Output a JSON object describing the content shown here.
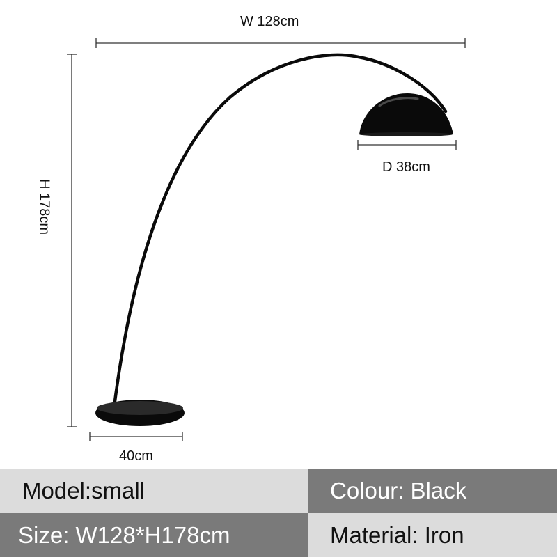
{
  "dimensions": {
    "width": "W 128cm",
    "height": "H 178cm",
    "shade_diameter": "D 38cm",
    "base_diameter": "40cm"
  },
  "specs": {
    "model": "Model:small",
    "colour": "Colour: Black",
    "size": "Size: W128*H178cm",
    "material": "Material: Iron"
  },
  "colors": {
    "lamp": "#0a0a0a",
    "dimension_line": "#333333",
    "light_cell": "#dcdcdc",
    "dark_cell": "#7a7a7a"
  }
}
